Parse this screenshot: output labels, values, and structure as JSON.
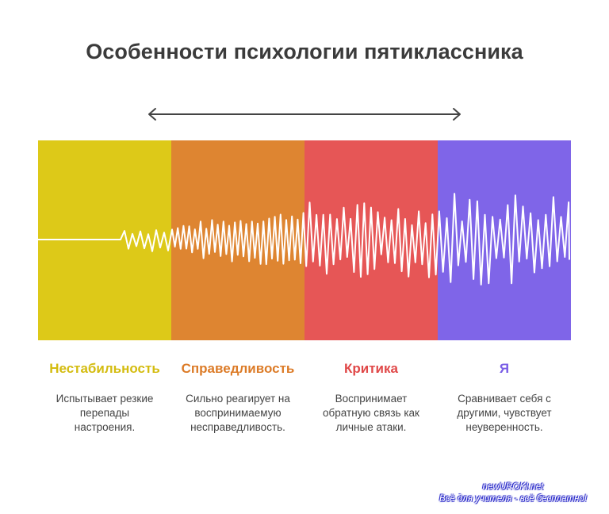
{
  "title": "Особенности психологии пятиклассника",
  "colors": {
    "title": "#3b3b3b",
    "arrow": "#444444",
    "wave": "#ffffff",
    "desc": "#444444"
  },
  "stages": [
    {
      "label": "Нестабильность",
      "color": "#ddc918",
      "label_color": "#d4bc10",
      "description": "Испытывает резкие перепады настроения."
    },
    {
      "label": "Справедливость",
      "color": "#de8531",
      "label_color": "#dc7b27",
      "description": "Сильно реагирует на воспринимаемую несправедливость."
    },
    {
      "label": "Критика",
      "color": "#e65656",
      "label_color": "#e04848",
      "description": "Воспринимает обратную связь как личные атаки."
    },
    {
      "label": "Я",
      "color": "#7f65e8",
      "label_color": "#7a5ee6",
      "description": "Сравнивает себя с другими, чувствует неуверенность."
    }
  ],
  "watermark": {
    "line1": "newUROKI.net",
    "line2": "Всё для учителя - всё бесплатно!"
  }
}
